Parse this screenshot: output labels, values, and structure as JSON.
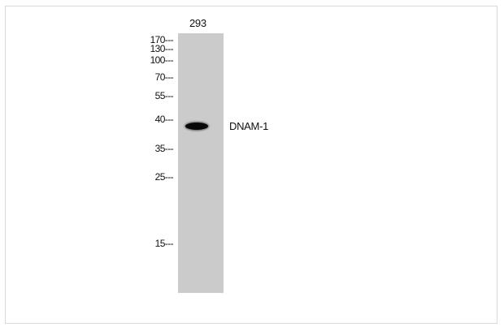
{
  "lane_label": "293",
  "markers": [
    "170---",
    "130---",
    "100---",
    "70---",
    "55---",
    "40---",
    "35---",
    "25---",
    "15---"
  ],
  "target_label": "DNAM-1"
}
